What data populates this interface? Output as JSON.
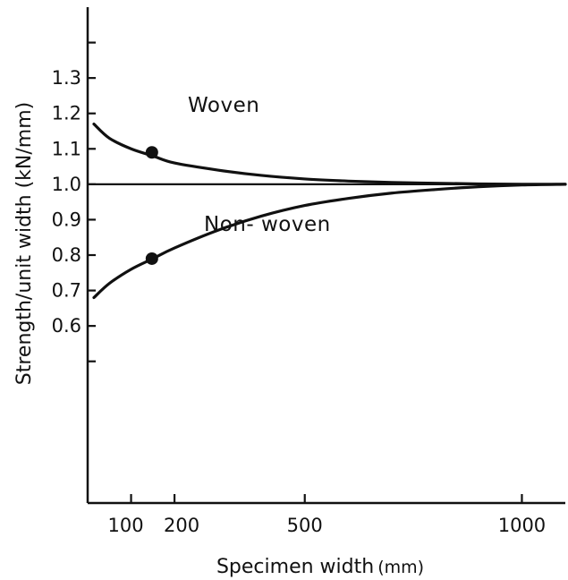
{
  "chart_data": {
    "type": "line",
    "title": "",
    "xlabel": "Specimen width",
    "xlabel_unit": "(mm)",
    "ylabel": "Strength/unit width (kN/mm)",
    "xlim": [
      0,
      1100
    ],
    "ylim": [
      0.1,
      1.5
    ],
    "x_ticks": [
      100,
      200,
      500,
      1000
    ],
    "x_tick_labels": [
      "100",
      "200",
      "500",
      "1000"
    ],
    "y_ticks": [
      0.6,
      0.7,
      0.8,
      0.9,
      1.0,
      1.1,
      1.2,
      1.3
    ],
    "y_tick_labels": [
      "0.6",
      "0.7",
      "0.8",
      "0.9",
      "1.0",
      "1.1",
      "1.2",
      "1.3"
    ],
    "y_unlabeled_ticks": [
      0.5,
      1.4
    ],
    "reference_line": 1.0,
    "grid": false,
    "series": [
      {
        "name": "Woven",
        "color": "#111111",
        "x": [
          0,
          50,
          100,
          150,
          200,
          300,
          400,
          500,
          600,
          700,
          800,
          900,
          1000,
          1100
        ],
        "y": [
          1.17,
          1.13,
          1.1,
          1.08,
          1.06,
          1.04,
          1.025,
          1.015,
          1.009,
          1.005,
          1.003,
          1.001,
          1.0,
          1.0
        ],
        "marker": {
          "x": 150,
          "y": 1.09
        }
      },
      {
        "name": "Non- woven",
        "color": "#111111",
        "x": [
          0,
          50,
          100,
          150,
          200,
          300,
          400,
          500,
          600,
          700,
          800,
          900,
          1000,
          1100
        ],
        "y": [
          0.68,
          0.72,
          0.76,
          0.79,
          0.82,
          0.87,
          0.91,
          0.94,
          0.96,
          0.975,
          0.985,
          0.993,
          0.998,
          1.0
        ],
        "marker": {
          "x": 150,
          "y": 0.79
        }
      }
    ]
  }
}
